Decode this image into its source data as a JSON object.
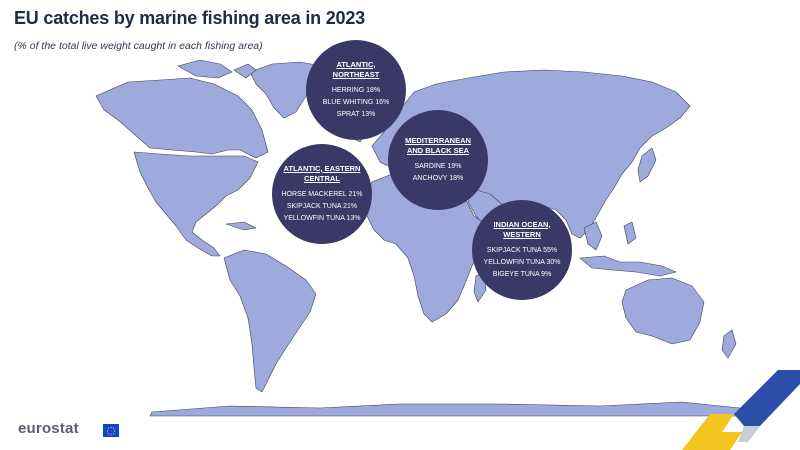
{
  "header": {
    "title": "EU catches by marine fishing area in 2023",
    "subtitle": "(% of the total live weight caught in each fishing area)"
  },
  "colors": {
    "land": "#9eaadb",
    "bubble": "#3a3867",
    "title": "#1f2a44",
    "logo_yellow": "#f2c521",
    "logo_blue": "#2b4fa8"
  },
  "areas": [
    {
      "name": "ATLANTIC, NORTHEAST",
      "species": [
        "HERRING 18%",
        "BLUE WHITING 16%",
        "SPRAT 13%"
      ]
    },
    {
      "name": "MEDITERRANEAN AND BLACK SEA",
      "species": [
        "SARDINE 19%",
        "ANCHOVY 18%"
      ]
    },
    {
      "name": "ATLANTIC, EASTERN CENTRAL",
      "species": [
        "HORSE MACKEREL 21%",
        "SKIPJACK TUNA 21%",
        "YELLOWFIN TUNA 13%"
      ]
    },
    {
      "name": "INDIAN OCEAN, WESTERN",
      "species": [
        "SKIPJACK TUNA 55%",
        "YELLOWFIN TUNA 30%",
        "BIGEYE TUNA 9%"
      ]
    }
  ],
  "footer": {
    "logo": "eurostat",
    "flag_icon": "eu-flag-icon"
  }
}
